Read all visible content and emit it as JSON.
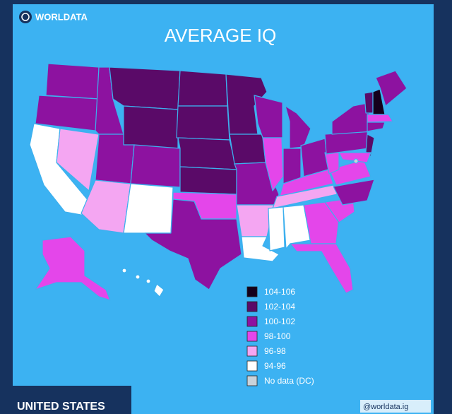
{
  "header": {
    "brand": "WORLDATA"
  },
  "title": "AVERAGE IQ",
  "legend": [
    {
      "label": "104-106",
      "color": "#14001c"
    },
    {
      "label": "102-104",
      "color": "#5a0a68"
    },
    {
      "label": "100-102",
      "color": "#8d12a0"
    },
    {
      "label": "98-100",
      "color": "#e446ea"
    },
    {
      "label": "96-98",
      "color": "#f4a6f2"
    },
    {
      "label": "94-96",
      "color": "#ffffff"
    },
    {
      "label": "No data (DC)",
      "color": "#c9d2da"
    }
  ],
  "footer": {
    "region": "UNITED STATES",
    "handle": "@worldata.ig"
  }
}
